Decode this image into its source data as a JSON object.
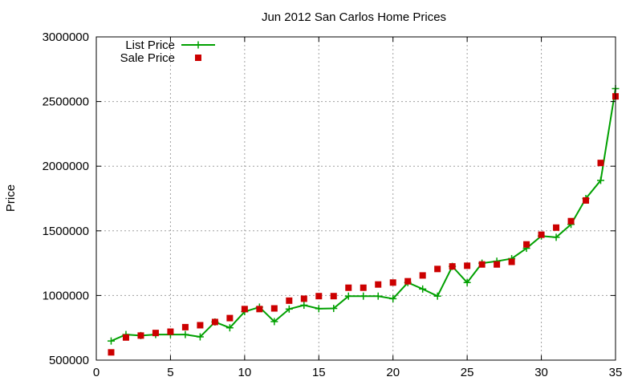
{
  "chart_data": {
    "type": "line",
    "title": "Jun 2012 San Carlos Home Prices",
    "xlabel": "",
    "ylabel": "Price",
    "xlim": [
      0,
      35
    ],
    "ylim": [
      500000,
      3000000
    ],
    "x_ticks": [
      0,
      5,
      10,
      15,
      20,
      25,
      30,
      35
    ],
    "y_ticks": [
      500000,
      1000000,
      1500000,
      2000000,
      2500000,
      3000000
    ],
    "grid": true,
    "legend_position": "top-left",
    "x": [
      1,
      2,
      3,
      4,
      5,
      6,
      7,
      8,
      9,
      10,
      11,
      12,
      13,
      14,
      15,
      16,
      17,
      18,
      19,
      20,
      21,
      22,
      23,
      24,
      25,
      26,
      27,
      28,
      29,
      30,
      31,
      32,
      33,
      34,
      35
    ],
    "series": [
      {
        "name": "List Price",
        "style": "line-with-plus-markers",
        "color": "#00a000",
        "values": [
          648000,
          698000,
          690000,
          698000,
          698000,
          698000,
          680000,
          795000,
          750000,
          875000,
          910000,
          798000,
          895000,
          925000,
          898000,
          900000,
          995000,
          995000,
          995000,
          975000,
          1100000,
          1050000,
          995000,
          1225000,
          1100000,
          1250000,
          1265000,
          1285000,
          1365000,
          1460000,
          1450000,
          1550000,
          1750000,
          1890000,
          2600000
        ]
      },
      {
        "name": "Sale Price",
        "style": "square-markers",
        "color": "#cc0000",
        "values": [
          560000,
          675000,
          690000,
          710000,
          720000,
          755000,
          770000,
          795000,
          825000,
          895000,
          895000,
          900000,
          960000,
          975000,
          995000,
          995000,
          1060000,
          1060000,
          1085000,
          1100000,
          1110000,
          1155000,
          1205000,
          1225000,
          1230000,
          1240000,
          1240000,
          1260000,
          1395000,
          1470000,
          1525000,
          1575000,
          1735000,
          2025000,
          2540000
        ]
      }
    ]
  }
}
